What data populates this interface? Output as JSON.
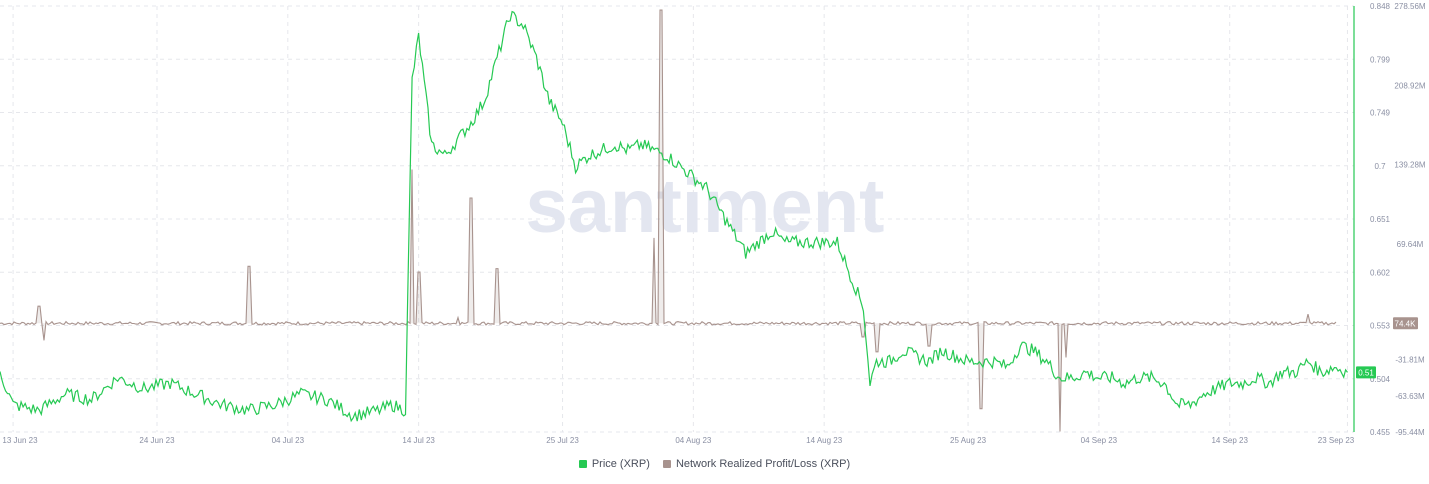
{
  "watermark": "santiment",
  "colors": {
    "price": "#26c953",
    "profit_loss": "#a8938e",
    "grid": "#e6e7ec",
    "axis_text": "#8a8fa3",
    "watermark": "#e3e6f0"
  },
  "chart_data": {
    "type": "line",
    "x_ticks": [
      "13 Jun 23",
      "24 Jun 23",
      "04 Jul 23",
      "14 Jul 23",
      "25 Jul 23",
      "04 Aug 23",
      "14 Aug 23",
      "25 Aug 23",
      "04 Sep 23",
      "14 Sep 23",
      "23 Sep 23"
    ],
    "price_axis": {
      "ticks": [
        "0.848",
        "0.799",
        "0.749",
        "0.7",
        "0.651",
        "0.602",
        "0.553",
        "0.504",
        "0.455"
      ],
      "ylim": [
        0.455,
        0.848
      ]
    },
    "profit_loss_axis": {
      "ticks": [
        "278.56M",
        "208.92M",
        "139.28M",
        "69.64M",
        "-31.81M",
        "-63.63M",
        "-95.44M"
      ],
      "ylim": [
        -95.44,
        278.56
      ]
    },
    "series": [
      {
        "name": "Price (XRP)",
        "axis": "price",
        "last_value_label": "0.51",
        "keypoints": [
          [
            "2023-06-12",
            0.51
          ],
          [
            "2023-06-13",
            0.48
          ],
          [
            "2023-06-15",
            0.475
          ],
          [
            "2023-06-17",
            0.49
          ],
          [
            "2023-06-19",
            0.485
          ],
          [
            "2023-06-21",
            0.505
          ],
          [
            "2023-06-23",
            0.495
          ],
          [
            "2023-06-25",
            0.5
          ],
          [
            "2023-06-27",
            0.49
          ],
          [
            "2023-06-29",
            0.48
          ],
          [
            "2023-07-01",
            0.475
          ],
          [
            "2023-07-03",
            0.48
          ],
          [
            "2023-07-05",
            0.49
          ],
          [
            "2023-07-07",
            0.485
          ],
          [
            "2023-07-09",
            0.47
          ],
          [
            "2023-07-11",
            0.475
          ],
          [
            "2023-07-12",
            0.48
          ],
          [
            "2023-07-13",
            0.475
          ],
          [
            "2023-07-13T12:00",
            0.78
          ],
          [
            "2023-07-14",
            0.82
          ],
          [
            "2023-07-15",
            0.72
          ],
          [
            "2023-07-16",
            0.71
          ],
          [
            "2023-07-18",
            0.74
          ],
          [
            "2023-07-19",
            0.76
          ],
          [
            "2023-07-20",
            0.8
          ],
          [
            "2023-07-21",
            0.84
          ],
          [
            "2023-07-22",
            0.83
          ],
          [
            "2023-07-23",
            0.8
          ],
          [
            "2023-07-24",
            0.76
          ],
          [
            "2023-07-25",
            0.74
          ],
          [
            "2023-07-26",
            0.7
          ],
          [
            "2023-07-27",
            0.71
          ],
          [
            "2023-07-28",
            0.715
          ],
          [
            "2023-07-29",
            0.72
          ],
          [
            "2023-07-30",
            0.715
          ],
          [
            "2023-07-31",
            0.72
          ],
          [
            "2023-08-01",
            0.715
          ],
          [
            "2023-08-02",
            0.71
          ],
          [
            "2023-08-03",
            0.7
          ],
          [
            "2023-08-04",
            0.69
          ],
          [
            "2023-08-05",
            0.68
          ],
          [
            "2023-08-06",
            0.66
          ],
          [
            "2023-08-07",
            0.64
          ],
          [
            "2023-08-08",
            0.62
          ],
          [
            "2023-08-09",
            0.63
          ],
          [
            "2023-08-10",
            0.64
          ],
          [
            "2023-08-11",
            0.63
          ],
          [
            "2023-08-12",
            0.63
          ],
          [
            "2023-08-13",
            0.63
          ],
          [
            "2023-08-14",
            0.63
          ],
          [
            "2023-08-15",
            0.63
          ],
          [
            "2023-08-16",
            0.6
          ],
          [
            "2023-08-17",
            0.57
          ],
          [
            "2023-08-17T12:00",
            0.5
          ],
          [
            "2023-08-18",
            0.52
          ],
          [
            "2023-08-19",
            0.52
          ],
          [
            "2023-08-20",
            0.53
          ],
          [
            "2023-08-21",
            0.525
          ],
          [
            "2023-08-22",
            0.52
          ],
          [
            "2023-08-23",
            0.53
          ],
          [
            "2023-08-24",
            0.525
          ],
          [
            "2023-08-25",
            0.52
          ],
          [
            "2023-08-26",
            0.52
          ],
          [
            "2023-08-27",
            0.52
          ],
          [
            "2023-08-28",
            0.515
          ],
          [
            "2023-08-29",
            0.535
          ],
          [
            "2023-08-30",
            0.53
          ],
          [
            "2023-08-31",
            0.52
          ],
          [
            "2023-09-01",
            0.505
          ],
          [
            "2023-09-02",
            0.505
          ],
          [
            "2023-09-03",
            0.51
          ],
          [
            "2023-09-04",
            0.505
          ],
          [
            "2023-09-05",
            0.505
          ],
          [
            "2023-09-06",
            0.5
          ],
          [
            "2023-09-07",
            0.505
          ],
          [
            "2023-09-08",
            0.505
          ],
          [
            "2023-09-09",
            0.5
          ],
          [
            "2023-09-10",
            0.48
          ],
          [
            "2023-09-11",
            0.48
          ],
          [
            "2023-09-12",
            0.49
          ],
          [
            "2023-09-13",
            0.495
          ],
          [
            "2023-09-14",
            0.5
          ],
          [
            "2023-09-15",
            0.5
          ],
          [
            "2023-09-16",
            0.505
          ],
          [
            "2023-09-17",
            0.5
          ],
          [
            "2023-09-18",
            0.51
          ],
          [
            "2023-09-19",
            0.51
          ],
          [
            "2023-09-20",
            0.52
          ],
          [
            "2023-09-21",
            0.51
          ],
          [
            "2023-09-22",
            0.515
          ],
          [
            "2023-09-23",
            0.51
          ]
        ]
      },
      {
        "name": "Network Realized Profit/Loss (XRP)",
        "axis": "profit_loss",
        "last_value_label": "74.4K",
        "baseline": 0,
        "spikes": [
          [
            "2023-06-15",
            15
          ],
          [
            "2023-06-15T08:00",
            -15
          ],
          [
            "2023-07-01",
            50
          ],
          [
            "2023-07-13T12:00",
            135
          ],
          [
            "2023-07-14",
            45
          ],
          [
            "2023-07-17",
            5
          ],
          [
            "2023-07-18",
            110
          ],
          [
            "2023-07-20",
            48
          ],
          [
            "2023-08-01",
            75
          ],
          [
            "2023-08-01T12:00",
            275
          ],
          [
            "2023-08-17",
            -12
          ],
          [
            "2023-08-18",
            -25
          ],
          [
            "2023-08-22",
            -20
          ],
          [
            "2023-08-26",
            -75
          ],
          [
            "2023-09-01",
            -95
          ],
          [
            "2023-09-01T12:00",
            -30
          ],
          [
            "2023-09-20",
            8
          ]
        ]
      }
    ]
  }
}
